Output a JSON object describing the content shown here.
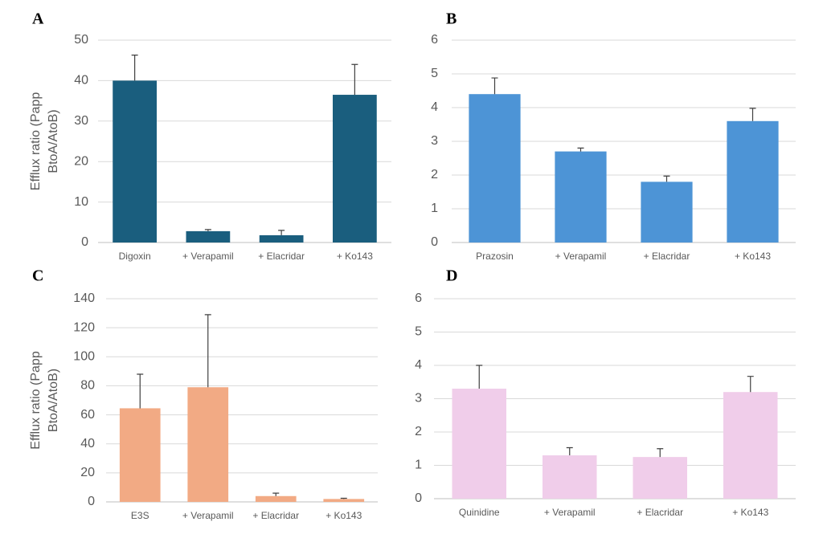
{
  "chart_data": [
    {
      "type": "bar",
      "label": "A",
      "y_label": [
        "Efflux ratio (Papp",
        "BtoA/AtoB)"
      ],
      "categories": [
        "Digoxin",
        "+ Verapamil",
        "+ Elacridar",
        "+ Ko143"
      ],
      "values": [
        40,
        2.8,
        1.8,
        36.5
      ],
      "errors": [
        6.3,
        0.4,
        1.2,
        7.5
      ],
      "color": "#1a5e7e",
      "ylim": [
        0,
        50
      ],
      "yticks": [
        0,
        10,
        20,
        30,
        40,
        50
      ],
      "grid": true
    },
    {
      "type": "bar",
      "label": "B",
      "categories": [
        "Prazosin",
        "+ Verapamil",
        "+ Elacridar",
        "+ Ko143"
      ],
      "values": [
        4.4,
        2.7,
        1.8,
        3.6
      ],
      "errors": [
        0.48,
        0.1,
        0.17,
        0.38
      ],
      "color": "#4d94d6",
      "ylim": [
        0,
        6
      ],
      "yticks": [
        0,
        1,
        2,
        3,
        4,
        5,
        6
      ],
      "grid": true
    },
    {
      "type": "bar",
      "label": "C",
      "y_label": [
        "Efflux ratio (Papp",
        "BtoA/AtoB)"
      ],
      "categories": [
        "E3S",
        "+ Verapamil",
        "+ Elacridar",
        "+ Ko143"
      ],
      "values": [
        64.5,
        79,
        4,
        2
      ],
      "errors": [
        23.5,
        50,
        2,
        0.5
      ],
      "color": "#f2aa84",
      "ylim": [
        0,
        140
      ],
      "yticks": [
        0,
        20,
        40,
        60,
        80,
        100,
        120,
        140
      ],
      "grid": true
    },
    {
      "type": "bar",
      "label": "D",
      "categories": [
        "Quinidine",
        "+ Verapamil",
        "+ Elacridar",
        "+ Ko143"
      ],
      "values": [
        3.3,
        1.3,
        1.25,
        3.2
      ],
      "errors": [
        0.7,
        0.23,
        0.25,
        0.47
      ],
      "color": "#f0cdea",
      "ylim": [
        0,
        6
      ],
      "yticks": [
        0,
        1,
        2,
        3,
        4,
        5,
        6
      ],
      "grid": true
    }
  ]
}
